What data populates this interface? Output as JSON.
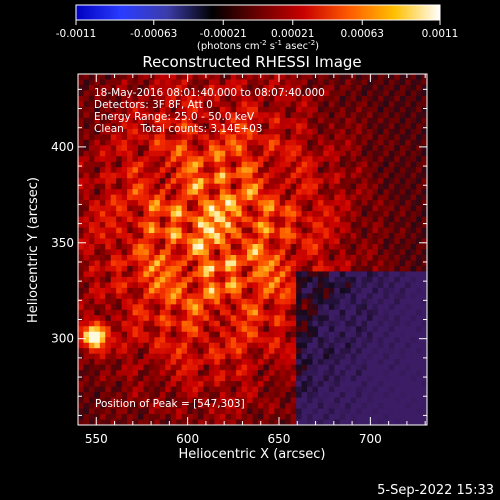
{
  "colorbar": {
    "ticks": [
      "-0.0011",
      "-0.00063",
      "-0.00021",
      "0.00021",
      "0.00063",
      "0.0011"
    ],
    "tick_values": [
      -0.0011,
      -0.00063,
      -0.00021,
      0.00021,
      0.00063,
      0.0011
    ],
    "range": [
      -0.0011,
      0.0011
    ],
    "stops": [
      "#0000c0",
      "#2a3cff",
      "#3c3caa",
      "#000000",
      "#6b0000",
      "#c80000",
      "#ff5a00",
      "#ffc000",
      "#ffffff"
    ],
    "units": {
      "part1": "(photons cm",
      "sup1": "-2",
      "part2": " s",
      "sup2": "-1",
      "part3": " asec",
      "sup3": "-2",
      "part4": ")"
    }
  },
  "chart_data": {
    "type": "heatmap",
    "title": "Reconstructed RHESSI Image",
    "xlabel": "Heliocentric X (arcsec)",
    "ylabel": "Heliocentric Y (arcsec)",
    "xlim": [
      540,
      731
    ],
    "ylim": [
      255,
      438
    ],
    "xticks": [
      550,
      600,
      650,
      700
    ],
    "yticks": [
      300,
      350,
      400
    ],
    "peak": {
      "x": 547,
      "y": 303
    },
    "annotations": {
      "line1": "18-May-2016 08:01:40.000 to 08:07:40.000",
      "line2": "Detectors: 3F 8F, Att 0",
      "line3": "Energy Range: 25.0 - 50.0 keV",
      "line4": "Clean     Total counts: 3.14E+03",
      "peak_label": "Position of Peak = [547,303]"
    }
  },
  "footer": {
    "date": "5-Sep-2022 15:33"
  }
}
